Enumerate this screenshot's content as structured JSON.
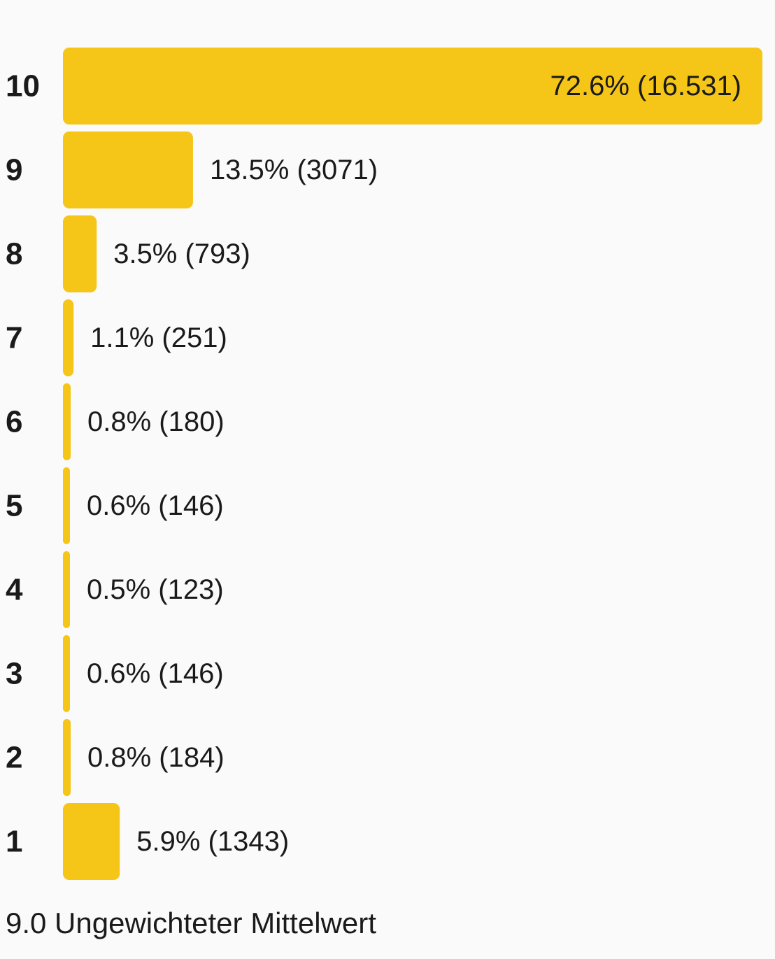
{
  "chart_data": {
    "type": "bar",
    "orientation": "horizontal",
    "categories": [
      "10",
      "9",
      "8",
      "7",
      "6",
      "5",
      "4",
      "3",
      "2",
      "1"
    ],
    "values": [
      72.6,
      13.5,
      3.5,
      1.1,
      0.8,
      0.6,
      0.5,
      0.6,
      0.8,
      5.9
    ],
    "counts": [
      "16.531",
      "3071",
      "793",
      "251",
      "180",
      "146",
      "123",
      "146",
      "184",
      "1343"
    ],
    "value_labels": [
      "72.6% (16.531)",
      "13.5% (3071)",
      "3.5% (793)",
      "1.1% (251)",
      "0.8% (180)",
      "0.6% (146)",
      "0.5% (123)",
      "0.6% (146)",
      "0.8% (184)",
      "5.9% (1343)"
    ],
    "xlim": [
      0,
      72.6
    ],
    "grid": false,
    "bar_color": "#f5c518"
  },
  "summary": {
    "text": "9.0 Ungewichteter Mittelwert"
  }
}
